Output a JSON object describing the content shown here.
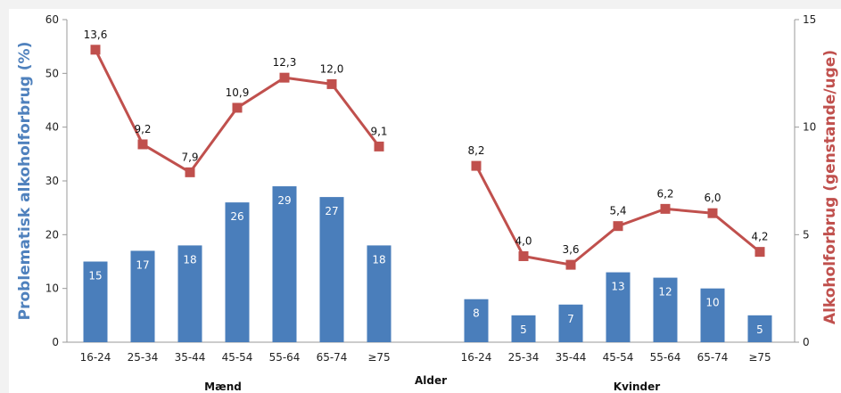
{
  "chart_data": {
    "type": "bar",
    "secondary_type": "line",
    "xlabel": "Alder",
    "ylabel_left": "Problematisk  alkoholforbrug (%)",
    "ylabel_right": "Alkoholforbrug (genstande/uge)",
    "ylim_left": [
      0,
      60
    ],
    "yticks_left": [
      "0",
      "10",
      "20",
      "30",
      "40",
      "50",
      "60"
    ],
    "ylim_right": [
      0,
      15
    ],
    "yticks_right": [
      "0",
      "5",
      "10",
      "15"
    ],
    "grid": false,
    "colors": {
      "bars": "#4a7ebb",
      "line": "#c0504d",
      "left_axis_title": "#4f81bd",
      "right_axis_title": "#c0504d"
    },
    "groups": [
      {
        "name": "Mænd",
        "categories": [
          "16-24",
          "25-34",
          "35-44",
          "45-54",
          "55-64",
          "65-74",
          "≥75"
        ],
        "bar_values": [
          15,
          17,
          18,
          26,
          29,
          27,
          18
        ],
        "bar_labels": [
          "15",
          "17",
          "18",
          "26",
          "29",
          "27",
          "18"
        ],
        "line_values": [
          13.6,
          9.2,
          7.9,
          10.9,
          12.3,
          12.0,
          9.1
        ],
        "line_labels": [
          "13,6",
          "9,2",
          "7,9",
          "10,9",
          "12,3",
          "12,0",
          "9,1"
        ]
      },
      {
        "name": "Kvinder",
        "categories": [
          "16-24",
          "25-34",
          "35-44",
          "45-54",
          "55-64",
          "65-74",
          "≥75"
        ],
        "bar_values": [
          8,
          5,
          7,
          13,
          12,
          10,
          5
        ],
        "bar_labels": [
          "8",
          "5",
          "7",
          "13",
          "12",
          "10",
          "5"
        ],
        "line_values": [
          8.2,
          4.0,
          3.6,
          5.4,
          6.2,
          6.0,
          4.2
        ],
        "line_labels": [
          "8,2",
          "4,0",
          "3,6",
          "5,4",
          "6,2",
          "6,0",
          "4,2"
        ]
      }
    ]
  }
}
